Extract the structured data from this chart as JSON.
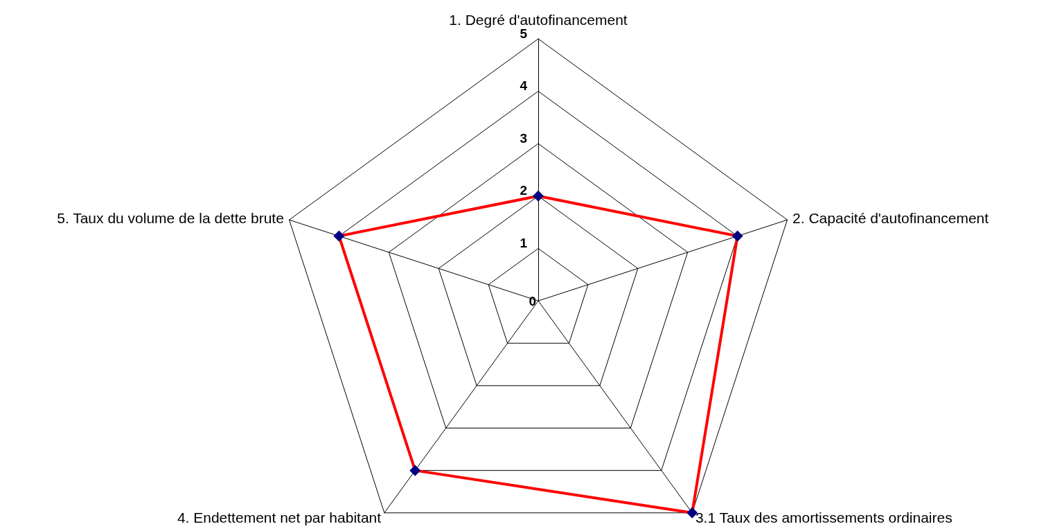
{
  "chart_data": {
    "type": "radar",
    "categories": [
      "1. Degré d'autofinancement",
      "2. Capacité d'autofinancement",
      "3.1 Taux des amortissements ordinaires",
      "4. Endettement net par habitant",
      "5. Taux du volume de la dette brute"
    ],
    "series": [
      {
        "color": "#ff0000",
        "values": [
          2,
          4,
          5,
          4,
          4
        ]
      }
    ],
    "ylim": [
      0,
      5
    ],
    "yticks": [
      0,
      1,
      2,
      3,
      4,
      5
    ],
    "grid": true,
    "marker": "diamond",
    "line_style": "solid"
  }
}
